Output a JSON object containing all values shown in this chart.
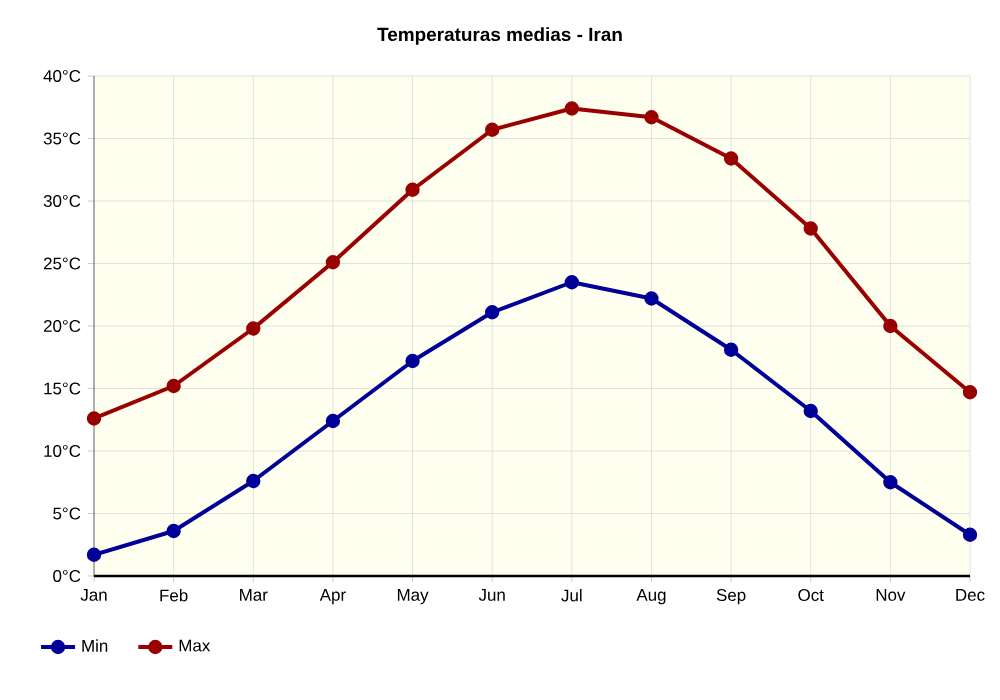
{
  "chart_data": {
    "type": "line",
    "title": "Temperaturas medias - Iran",
    "categories": [
      "Jan",
      "Feb",
      "Mar",
      "Apr",
      "May",
      "Jun",
      "Jul",
      "Aug",
      "Sep",
      "Oct",
      "Nov",
      "Dec"
    ],
    "series": [
      {
        "name": "Min",
        "color": "#000099",
        "values": [
          1.7,
          3.6,
          7.6,
          12.4,
          17.2,
          21.1,
          23.5,
          22.2,
          18.1,
          13.2,
          7.5,
          3.3
        ]
      },
      {
        "name": "Max",
        "color": "#990000",
        "values": [
          12.6,
          15.2,
          19.8,
          25.1,
          30.9,
          35.7,
          37.4,
          36.7,
          33.4,
          27.8,
          20.0,
          14.7
        ]
      }
    ],
    "ylim": [
      0,
      40
    ],
    "yticks": [
      {
        "value": 0,
        "label": "0°C"
      },
      {
        "value": 5,
        "label": "5°C"
      },
      {
        "value": 10,
        "label": "10°C"
      },
      {
        "value": 15,
        "label": "15°C"
      },
      {
        "value": 20,
        "label": "20°C"
      },
      {
        "value": 25,
        "label": "25°C"
      },
      {
        "value": 30,
        "label": "30°C"
      },
      {
        "value": 35,
        "label": "35°C"
      },
      {
        "value": 40,
        "label": "40°C"
      }
    ],
    "grid": true,
    "legend": "bottom left",
    "marker": "circle",
    "line_style": "solid"
  }
}
